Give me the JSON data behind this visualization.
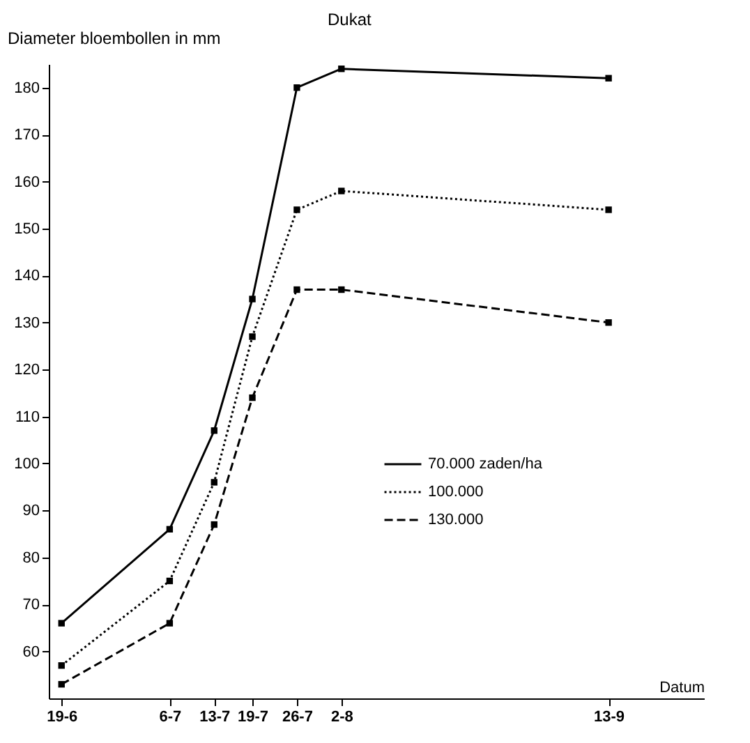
{
  "chart_data": {
    "type": "line",
    "title": "Dukat",
    "ylabel": "Diameter bloembollen in mm",
    "xlabel": "Datum",
    "x": [
      "--06-19",
      "--07-06",
      "--07-13",
      "--07-19",
      "--07-26",
      "--08-02",
      "--09-13"
    ],
    "xlim": [
      "--06-17",
      "--09-28"
    ],
    "xticks": [
      {
        "value": "--06-19",
        "label": "19-6"
      },
      {
        "value": "--07-06",
        "label": "6-7"
      },
      {
        "value": "--07-13",
        "label": "13-7"
      },
      {
        "value": "--07-19",
        "label": "19-7"
      },
      {
        "value": "--07-26",
        "label": "26-7"
      },
      {
        "value": "--08-02",
        "label": "2-8"
      },
      {
        "value": "--09-13",
        "label": "13-9"
      }
    ],
    "ylim": [
      50,
      185
    ],
    "yticks": [
      60,
      70,
      80,
      90,
      100,
      110,
      120,
      130,
      140,
      150,
      160,
      170,
      180
    ],
    "series": [
      {
        "name": "70.000  zaden/ha",
        "color": "#000000",
        "line_style": "solid",
        "values": [
          66,
          86,
          107,
          135,
          180,
          184,
          182
        ]
      },
      {
        "name": "100.000",
        "color": "#000000",
        "line_style": "dotted",
        "values": [
          57,
          75,
          96,
          127,
          154,
          158,
          154
        ]
      },
      {
        "name": "130.000",
        "color": "#000000",
        "line_style": "dashed",
        "values": [
          53,
          66,
          87,
          114,
          137,
          137,
          130
        ]
      }
    ],
    "marker": "square",
    "legend": "right",
    "grid": false
  }
}
